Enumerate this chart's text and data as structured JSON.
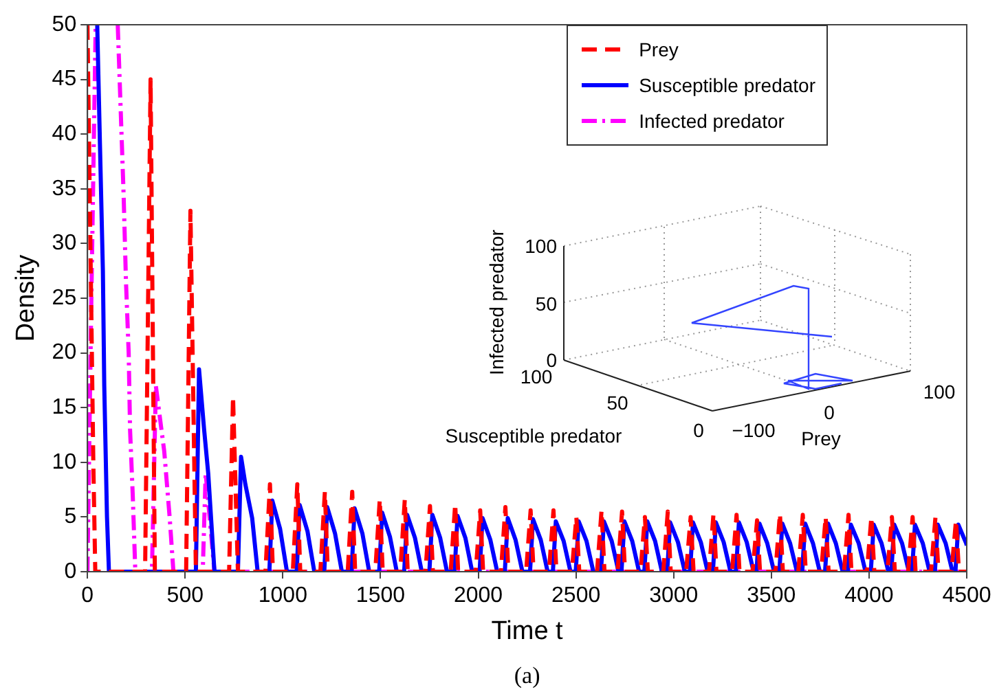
{
  "chart_data": [
    {
      "type": "line",
      "xlabel": "Time t",
      "ylabel": "Density",
      "xlim": [
        0,
        4500
      ],
      "xticks": [
        0,
        500,
        1000,
        1500,
        2000,
        2500,
        3000,
        3500,
        4000,
        4500
      ],
      "ylim": [
        0,
        50
      ],
      "yticks": [
        0,
        5,
        10,
        15,
        20,
        25,
        30,
        35,
        40,
        45,
        50
      ],
      "legend": "top right",
      "annotations": [
        "(a)"
      ],
      "series": [
        {
          "name": "Prey",
          "color": "#ff0000",
          "line_style": "dashed",
          "x": [
            0,
            15,
            30,
            40,
            295,
            323,
            345,
            505,
            527,
            555,
            725,
            745,
            770,
            911,
            934,
            949,
            1051,
            1074,
            1089,
            1192,
            1215,
            1230,
            1332,
            1355,
            1370,
            1473,
            1496,
            1511,
            1601,
            1624,
            1639,
            1730,
            1753,
            1768,
            1859,
            1882,
            1897,
            1987,
            2010,
            2025,
            2116,
            2139,
            2154,
            2245,
            2268,
            2283,
            2362,
            2385,
            2400,
            2479,
            2502,
            2517,
            2608,
            2631,
            2646,
            2713,
            2736,
            2751,
            2830,
            2853,
            2868,
            2947,
            2970,
            2985,
            3064,
            3087,
            3102,
            3181,
            3204,
            3219,
            3299,
            3322,
            3337,
            3404,
            3427,
            3442,
            3521,
            3544,
            3559,
            3638,
            3661,
            3676,
            3755,
            3778,
            3793,
            3872,
            3895,
            3910,
            3989,
            4012,
            4027,
            4094,
            4117,
            4132,
            4200,
            4223,
            4238,
            4317,
            4340,
            4355,
            4422,
            4445,
            4460,
            4500
          ],
          "values": [
            50,
            30,
            10,
            0,
            0,
            45,
            0,
            0,
            33,
            0,
            0,
            16,
            0,
            0,
            8.0,
            0,
            0,
            8.0,
            0,
            0,
            7.3,
            0,
            0,
            7.3,
            0,
            0,
            6.6,
            0,
            0,
            6.6,
            0,
            0,
            6.0,
            0,
            0,
            6.2,
            0,
            0,
            5.6,
            0,
            0,
            5.9,
            0,
            0,
            5.6,
            0,
            0,
            5.6,
            0,
            0,
            5.0,
            0,
            0,
            5.6,
            0,
            0,
            5.5,
            0,
            0,
            5.0,
            0,
            0,
            5.5,
            0,
            0,
            5.0,
            0,
            0,
            5.3,
            0,
            0,
            5.2,
            0,
            0,
            4.7,
            0,
            0,
            5.3,
            0,
            0,
            5.2,
            0,
            0,
            5.0,
            0,
            0,
            5.2,
            0,
            0,
            5.0,
            0,
            0,
            5.0,
            0,
            0,
            5.0,
            0,
            0,
            5.0,
            0,
            0,
            4.7,
            0,
            0
          ]
        },
        {
          "name": "Susceptible predator",
          "color": "#0000ff",
          "line_style": "solid",
          "x": [
            50,
            64,
            79,
            86,
            100,
            110,
            555,
            571,
            597,
            618,
            650,
            770,
            786,
            808,
            843,
            871,
            931,
            946,
            986,
            1021,
            1071,
            1086,
            1126,
            1161,
            1212,
            1227,
            1267,
            1302,
            1352,
            1367,
            1407,
            1442,
            1493,
            1508,
            1548,
            1583,
            1621,
            1636,
            1676,
            1711,
            1750,
            1765,
            1805,
            1840,
            1879,
            1894,
            1934,
            1969,
            2007,
            2022,
            2062,
            2097,
            2136,
            2151,
            2191,
            2226,
            2265,
            2280,
            2320,
            2355,
            2382,
            2397,
            2437,
            2472,
            2499,
            2514,
            2554,
            2589,
            2628,
            2643,
            2683,
            2718,
            2733,
            2748,
            2788,
            2823,
            2850,
            2865,
            2905,
            2940,
            2967,
            2982,
            3022,
            3057,
            3084,
            3099,
            3139,
            3174,
            3201,
            3216,
            3256,
            3291,
            3319,
            3334,
            3374,
            3409,
            3424,
            3439,
            3479,
            3514,
            3541,
            3556,
            3596,
            3631,
            3658,
            3673,
            3713,
            3748,
            3775,
            3790,
            3830,
            3865,
            3892,
            3907,
            3947,
            3982,
            4009,
            4024,
            4064,
            4099,
            4114,
            4129,
            4169,
            4204,
            4220,
            4235,
            4275,
            4310,
            4337,
            4352,
            4392,
            4427,
            4442,
            4457,
            4497,
            4500
          ],
          "values": [
            50,
            39,
            27.5,
            17,
            5,
            0,
            0,
            18.5,
            13,
            9,
            0,
            0,
            10.5,
            8,
            4.9,
            0,
            0,
            6.5,
            3.9,
            0,
            0,
            6.1,
            3.7,
            0,
            0,
            5.9,
            3.5,
            0,
            0,
            5.8,
            3.5,
            0,
            0,
            5.4,
            3.2,
            0,
            0,
            5.2,
            3.1,
            0,
            0,
            5.2,
            3.1,
            0,
            0,
            5.1,
            3.1,
            0,
            0,
            4.9,
            2.9,
            0,
            0,
            4.9,
            2.9,
            0,
            0,
            4.8,
            2.9,
            0,
            0,
            4.6,
            2.8,
            0,
            0,
            4.6,
            2.8,
            0,
            0,
            4.6,
            2.8,
            0,
            0,
            4.6,
            2.8,
            0,
            0,
            4.6,
            2.8,
            0,
            0,
            4.5,
            2.7,
            0,
            0,
            4.5,
            2.7,
            0,
            0,
            4.5,
            2.7,
            0,
            0,
            4.5,
            2.7,
            0,
            0,
            4.4,
            2.6,
            0,
            0,
            4.4,
            2.6,
            0,
            0,
            4.4,
            2.6,
            0,
            0,
            4.4,
            2.6,
            0,
            0,
            4.3,
            2.6,
            0,
            0,
            4.3,
            2.6,
            0,
            0,
            4.3,
            2.6,
            0,
            0,
            4.3,
            2.6,
            0,
            0,
            4.3,
            2.6,
            0,
            0,
            4.3,
            2.6,
            2.4
          ]
        },
        {
          "name": "Infected predator",
          "color": "#ff00ff",
          "line_style": "dashdot",
          "x": [
            0,
            20,
            42,
            100,
            155,
            185,
            197,
            211,
            218,
            232,
            245,
            330,
            350,
            372,
            393,
            421,
            440,
            590,
            605,
            650,
            4500
          ],
          "values": [
            0,
            25,
            50,
            null,
            50,
            34.5,
            26.6,
            20,
            13,
            6.9,
            0,
            0,
            17,
            13.9,
            11,
            4.9,
            0,
            0,
            9,
            0,
            0
          ]
        }
      ]
    },
    {
      "type": "other",
      "xlabel": "Prey",
      "ylabel": "Susceptible predator",
      "y2label": "Infected predator",
      "annotations": [
        "100",
        "50",
        "0",
        "100",
        "50",
        "0",
        "−100",
        "0",
        "100"
      ]
    }
  ]
}
